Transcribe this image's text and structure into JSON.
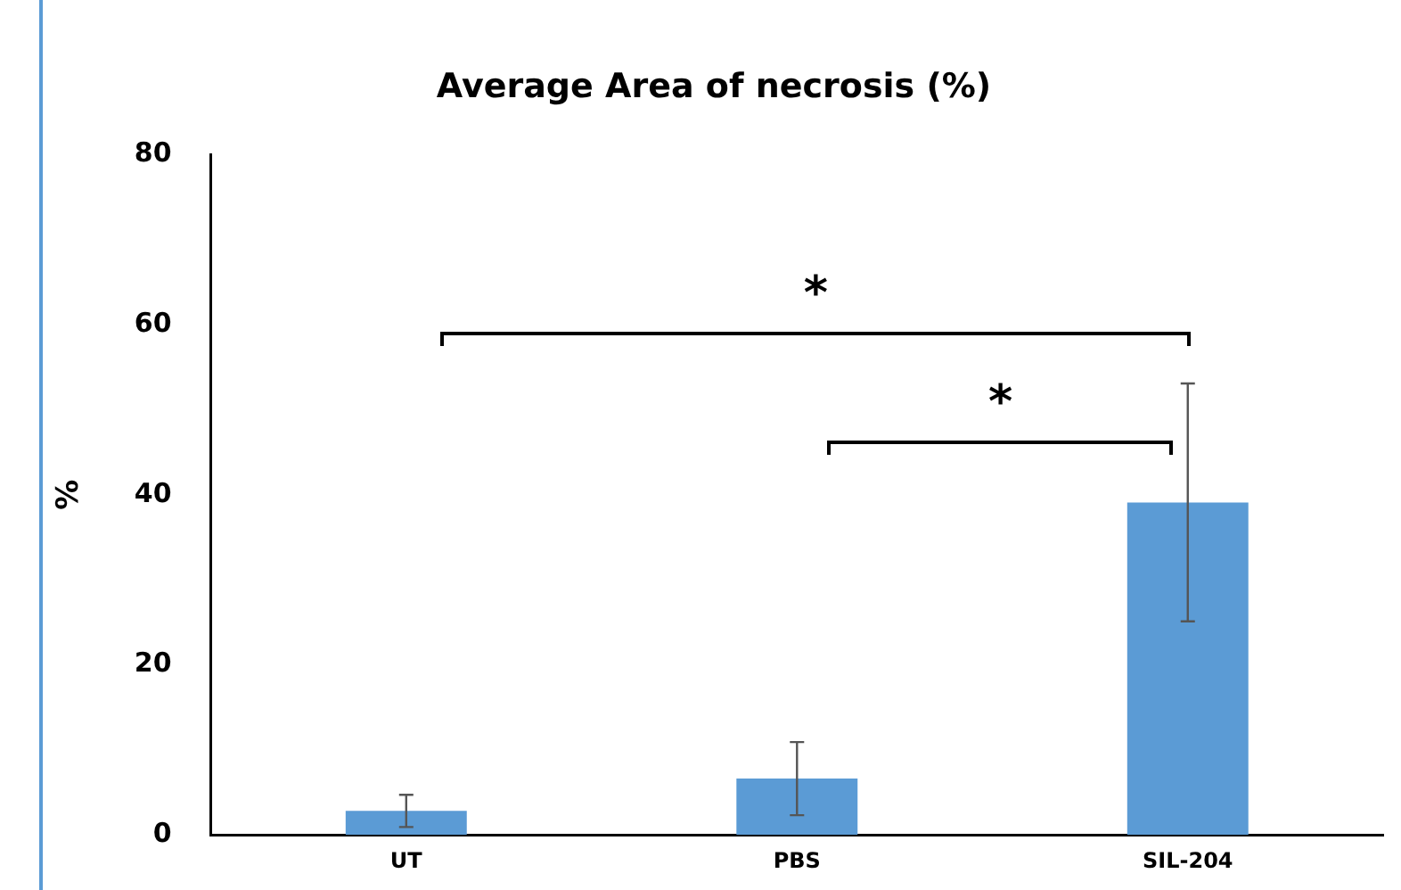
{
  "chart_data": {
    "type": "bar",
    "title": "Average Area of necrosis (%)",
    "ylabel": "%",
    "categories": [
      "UT",
      "PBS",
      "SIL-204"
    ],
    "values": [
      2.8,
      6.6,
      39.1
    ],
    "errors": [
      1.9,
      4.3,
      14
    ],
    "color": "#5b9bd5",
    "ylim": [
      0,
      80
    ],
    "yticks": [
      0,
      20,
      40,
      60,
      80
    ],
    "grid": false,
    "legend": false,
    "annotations": [
      "*",
      "*"
    ]
  }
}
